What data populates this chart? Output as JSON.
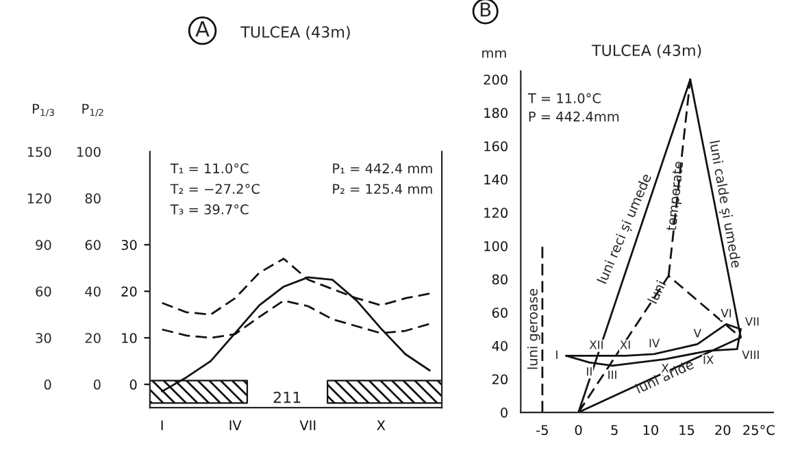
{
  "chart_data": [
    {
      "type": "line",
      "title": "TULCEA (43m)",
      "subtitle": "A",
      "categories": [
        "I",
        null,
        null,
        "IV",
        null,
        null,
        "VII",
        null,
        null,
        "X",
        null,
        null
      ],
      "ylim": [
        -5,
        50
      ],
      "yticks": [
        0,
        10,
        20,
        30
      ],
      "y2label": "P$_{1/2}$",
      "y2lim": [
        -10,
        100
      ],
      "y2ticks": [
        0,
        20,
        40,
        60,
        80,
        100
      ],
      "y3label": "P$_{1/3}$",
      "y3lim": [
        -15,
        150
      ],
      "y3ticks": [
        0,
        30,
        60,
        90,
        120,
        150
      ],
      "series": [
        {
          "type": "line",
          "color": "#111111",
          "line_style": "solid",
          "values": [
            -1.5,
            1.5,
            5,
            11,
            17,
            21,
            23,
            22.5,
            18,
            12,
            6.5,
            3
          ]
        },
        {
          "type": "line",
          "color": "#111111",
          "line_style": "dashed",
          "values": [
            17.5,
            15.5,
            15,
            18.5,
            24,
            27,
            22.5,
            20.5,
            18.5,
            17,
            18.5,
            19.5
          ]
        },
        {
          "type": "line",
          "color": "#111111",
          "line_style": "dashed",
          "values": [
            11.8,
            10.5,
            10,
            10.8,
            14.5,
            18,
            16.8,
            14,
            12.5,
            11,
            11.5,
            13
          ]
        }
      ],
      "annotations": [
        "T₁ = 11.0°C",
        "T₂ = −27.2°C",
        "T₃ = 39.7°C",
        "P₁ = 442.4 mm",
        "P₂ = 125.4 mm",
        "211"
      ],
      "grid": false,
      "legend": false
    },
    {
      "type": "line",
      "title": "TULCEA (43m)",
      "subtitle": "B",
      "ylabel": "mm",
      "xlim": [
        -8,
        27
      ],
      "xticks": [
        -5,
        0,
        5,
        10,
        15,
        20,
        {
          "value": 25,
          "label": "25°C"
        }
      ],
      "ylim": [
        0,
        205
      ],
      "yticks": [
        0,
        20,
        40,
        60,
        80,
        100,
        120,
        140,
        160,
        180,
        200
      ],
      "series": [
        {
          "type": "line",
          "color": "#111111",
          "line_style": "solid",
          "x": [
            -1.7,
            2.5,
            6.5,
            10.5,
            16.5,
            20.5,
            22.5
          ],
          "values": [
            34,
            34,
            34,
            35,
            41,
            53,
            50
          ]
        },
        {
          "type": "line",
          "color": "#111111",
          "line_style": "solid",
          "x": [
            -1.7,
            1.5,
            4.7,
            12,
            18,
            22,
            22.5
          ],
          "values": [
            34,
            30,
            28,
            32,
            37,
            38,
            50
          ]
        },
        {
          "type": "line",
          "color": "#111111",
          "line_style": "solid",
          "x": [
            0,
            15.5
          ],
          "values": [
            0,
            200
          ]
        },
        {
          "type": "line",
          "color": "#111111",
          "line_style": "solid",
          "x": [
            15.5,
            22.5
          ],
          "values": [
            200,
            45
          ]
        },
        {
          "type": "line",
          "color": "#111111",
          "line_style": "solid",
          "x": [
            0,
            22.5
          ],
          "values": [
            0,
            45
          ]
        },
        {
          "type": "line",
          "color": "#111111",
          "line_style": "dashed",
          "x": [
            0,
            12.5,
            22.5
          ],
          "values": [
            0,
            82,
            45
          ]
        },
        {
          "type": "line",
          "color": "#111111",
          "line_style": "dashed",
          "x": [
            12.5,
            15.5
          ],
          "values": [
            82,
            200
          ]
        },
        {
          "type": "line",
          "color": "#111111",
          "line_style": "dashed",
          "x": [
            -5,
            -5
          ],
          "values": [
            0,
            100
          ]
        }
      ],
      "annotations": [
        "T = 11.0°C",
        "P = 442.4mm",
        "luni reci și umede",
        "temperate",
        "luni",
        "luni calde și umede",
        "luni aride",
        "luni geroase",
        {
          "text": "I",
          "x": -1.7,
          "y": 34
        },
        {
          "text": "II",
          "x": 1.5,
          "y": 30
        },
        {
          "text": "III",
          "x": 4.7,
          "y": 28
        },
        {
          "text": "IV",
          "x": 10.5,
          "y": 35
        },
        {
          "text": "V",
          "x": 16.5,
          "y": 41
        },
        {
          "text": "VI",
          "x": 20.5,
          "y": 53
        },
        {
          "text": "VII",
          "x": 22.5,
          "y": 50
        },
        {
          "text": "VIII",
          "x": 22,
          "y": 38
        },
        {
          "text": "IX",
          "x": 18,
          "y": 37
        },
        {
          "text": "X",
          "x": 12,
          "y": 32
        },
        {
          "text": "XI",
          "x": 6.5,
          "y": 34
        },
        {
          "text": "XII",
          "x": 2.5,
          "y": 34
        }
      ],
      "grid": false,
      "legend": false
    }
  ]
}
